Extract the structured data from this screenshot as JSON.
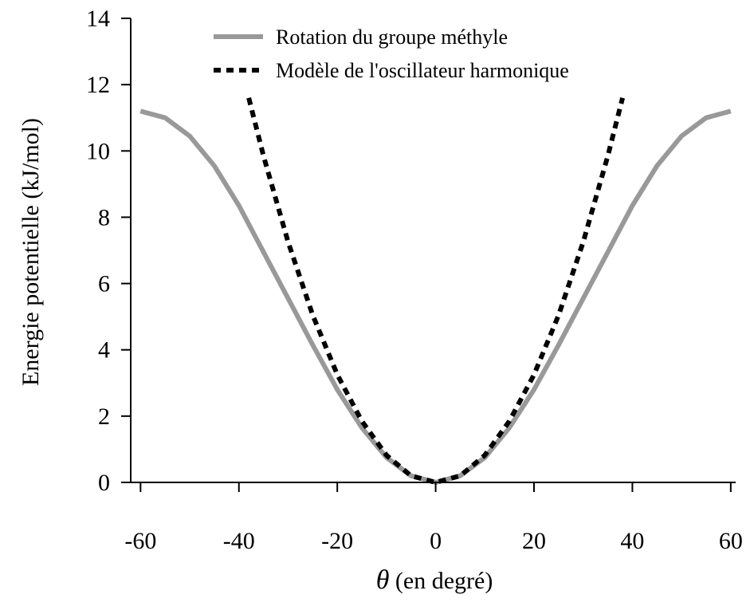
{
  "chart_data": {
    "type": "line",
    "xlabel": {
      "symbol": "θ",
      "text": "(en degré)"
    },
    "ylabel": "Energie potentielle (kJ/mol)",
    "xlim": [
      -62,
      61
    ],
    "ylim": [
      0,
      14
    ],
    "xticks": [
      -60,
      -40,
      -20,
      0,
      20,
      40,
      60
    ],
    "yticks": [
      0,
      2,
      4,
      6,
      8,
      10,
      12,
      14
    ],
    "xtick_labels": [
      "-60",
      "-40",
      "-20",
      "0",
      "20",
      "40",
      "60"
    ],
    "ytick_labels": [
      "0",
      "2",
      "4",
      "6",
      "8",
      "10",
      "12",
      "14"
    ],
    "grid": false,
    "legend_position": "top-right",
    "series": [
      {
        "name": "Rotation du groupe méthyle",
        "style": "solid",
        "color": "#999999",
        "x": [
          -60,
          -55,
          -50,
          -45,
          -40,
          -35,
          -30,
          -25,
          -20,
          -15,
          -10,
          -5,
          0,
          5,
          10,
          15,
          20,
          25,
          30,
          35,
          40,
          45,
          50,
          55,
          60
        ],
        "y": [
          11.2,
          11.0,
          10.45,
          9.55,
          8.35,
          6.95,
          5.55,
          4.15,
          2.8,
          1.65,
          0.75,
          0.2,
          0.0,
          0.2,
          0.75,
          1.65,
          2.8,
          4.15,
          5.55,
          6.95,
          8.35,
          9.55,
          10.45,
          11.0,
          11.2
        ]
      },
      {
        "name": "Modèle de l'oscillateur harmonique",
        "style": "dashed",
        "color": "#000000",
        "x": [
          -38,
          -35,
          -30,
          -25,
          -20,
          -15,
          -10,
          -5,
          0,
          5,
          10,
          15,
          20,
          25,
          30,
          35,
          38
        ],
        "y": [
          11.6,
          9.85,
          7.25,
          5.05,
          3.25,
          1.85,
          0.82,
          0.2,
          0.0,
          0.2,
          0.82,
          1.85,
          3.25,
          5.05,
          7.25,
          9.85,
          11.6
        ]
      }
    ]
  }
}
